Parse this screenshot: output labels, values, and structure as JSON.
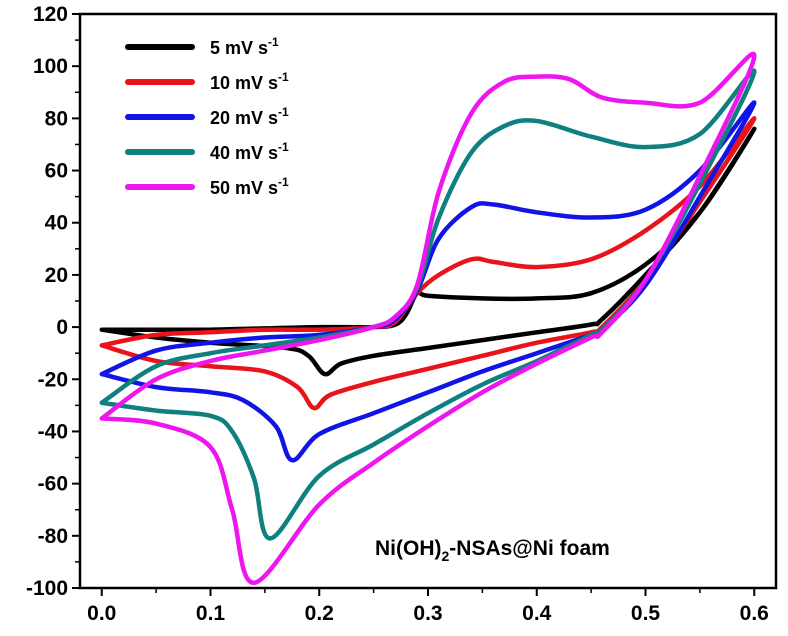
{
  "chart_data": {
    "type": "line",
    "title": "",
    "xlabel": "",
    "ylabel": "",
    "xlim": [
      -0.02,
      0.62
    ],
    "ylim": [
      -100,
      120
    ],
    "xticks": [
      0.0,
      0.1,
      0.2,
      0.3,
      0.4,
      0.5,
      0.6
    ],
    "xtick_labels": [
      "0.0",
      "0.1",
      "0.2",
      "0.3",
      "0.4",
      "0.5",
      "0.6"
    ],
    "yticks": [
      -100,
      -80,
      -60,
      -40,
      -20,
      0,
      20,
      40,
      60,
      80,
      100,
      120
    ],
    "ytick_labels": [
      "-100",
      "-80",
      "-60",
      "-40",
      "-20",
      "0",
      "20",
      "40",
      "60",
      "80",
      "100",
      "120"
    ],
    "grid": false,
    "legend_position": "top-left",
    "annotation": {
      "main": "Ni(OH)",
      "sub": "2",
      "rest": "-NSAs@Ni foam"
    },
    "series": [
      {
        "name": "5 mV s",
        "name_sup": "-1",
        "color": "#000000",
        "x": [
          0.0,
          0.05,
          0.1,
          0.15,
          0.2,
          0.25,
          0.27,
          0.28,
          0.29,
          0.3,
          0.35,
          0.4,
          0.45,
          0.5,
          0.55,
          0.6,
          0.55,
          0.5,
          0.46,
          0.45,
          0.4,
          0.35,
          0.3,
          0.25,
          0.22,
          0.205,
          0.19,
          0.17,
          0.1,
          0.05,
          0.0
        ],
        "y": [
          -1,
          -1,
          -1,
          -0.5,
          0,
          0,
          1,
          5,
          13,
          12,
          11,
          11,
          13,
          24,
          44,
          76,
          44,
          20,
          3,
          1,
          -2,
          -5,
          -8,
          -11,
          -14,
          -18,
          -11,
          -8,
          -6,
          -4,
          -1
        ]
      },
      {
        "name": "10 mV s",
        "name_sup": "-1",
        "color": "#e8131b",
        "x": [
          0.0,
          0.05,
          0.1,
          0.15,
          0.2,
          0.25,
          0.27,
          0.29,
          0.31,
          0.34,
          0.36,
          0.4,
          0.45,
          0.5,
          0.55,
          0.6,
          0.55,
          0.5,
          0.46,
          0.45,
          0.4,
          0.35,
          0.3,
          0.25,
          0.21,
          0.195,
          0.18,
          0.15,
          0.1,
          0.05,
          0.0
        ],
        "y": [
          -7,
          -3,
          -2,
          -1,
          -1,
          0,
          2,
          13,
          20,
          26,
          25,
          23,
          26,
          37,
          54,
          80,
          48,
          18,
          0,
          -2,
          -6,
          -11,
          -16,
          -21,
          -26,
          -31,
          -23,
          -17,
          -15,
          -13,
          -7
        ]
      },
      {
        "name": "20 mV s",
        "name_sup": "-1",
        "color": "#1015e6",
        "x": [
          0.0,
          0.05,
          0.1,
          0.15,
          0.2,
          0.25,
          0.27,
          0.29,
          0.31,
          0.34,
          0.36,
          0.4,
          0.45,
          0.5,
          0.55,
          0.6,
          0.55,
          0.5,
          0.46,
          0.45,
          0.4,
          0.35,
          0.3,
          0.25,
          0.2,
          0.175,
          0.16,
          0.13,
          0.1,
          0.05,
          0.0
        ],
        "y": [
          -18,
          -9,
          -6,
          -4,
          -3,
          0,
          3,
          14,
          34,
          46,
          47,
          44,
          42,
          45,
          60,
          86,
          50,
          16,
          -1,
          -3,
          -10,
          -17,
          -25,
          -33,
          -41,
          -51,
          -38,
          -28,
          -25,
          -23,
          -18
        ]
      },
      {
        "name": "40 mV s",
        "name_sup": "-1",
        "color": "#0f8080",
        "x": [
          0.0,
          0.05,
          0.1,
          0.15,
          0.2,
          0.25,
          0.27,
          0.29,
          0.31,
          0.34,
          0.37,
          0.4,
          0.45,
          0.5,
          0.55,
          0.6,
          0.55,
          0.5,
          0.46,
          0.45,
          0.4,
          0.35,
          0.3,
          0.25,
          0.2,
          0.155,
          0.14,
          0.12,
          0.1,
          0.05,
          0.0
        ],
        "y": [
          -29,
          -15,
          -10,
          -7,
          -4,
          0,
          4,
          15,
          42,
          67,
          77,
          79,
          73,
          69,
          74,
          98,
          55,
          18,
          -1,
          -3,
          -13,
          -22,
          -33,
          -45,
          -57,
          -81,
          -58,
          -40,
          -34,
          -32,
          -29
        ]
      },
      {
        "name": "50 mV s",
        "name_sup": "-1",
        "color": "#ee16ee",
        "x": [
          0.0,
          0.05,
          0.1,
          0.15,
          0.2,
          0.25,
          0.27,
          0.29,
          0.31,
          0.34,
          0.37,
          0.4,
          0.43,
          0.46,
          0.5,
          0.55,
          0.6,
          0.55,
          0.5,
          0.46,
          0.45,
          0.4,
          0.35,
          0.3,
          0.25,
          0.2,
          0.14,
          0.12,
          0.1,
          0.05,
          0.0
        ],
        "y": [
          -35,
          -20,
          -13,
          -9,
          -5,
          0,
          4,
          16,
          52,
          82,
          94,
          96,
          95,
          88,
          86,
          86,
          104,
          58,
          18,
          -2,
          -4,
          -14,
          -25,
          -38,
          -52,
          -68,
          -98,
          -70,
          -46,
          -37,
          -35
        ]
      }
    ]
  }
}
